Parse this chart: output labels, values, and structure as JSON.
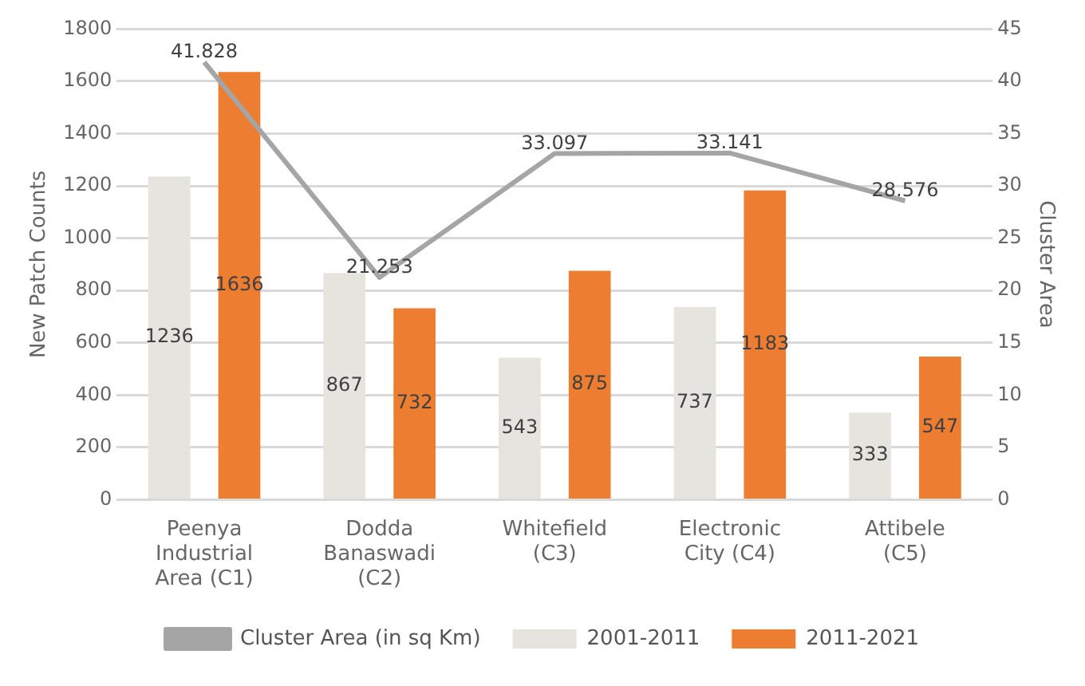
{
  "chart_data": {
    "type": "bar",
    "categories": [
      "Peenya Industrial Area (C1)",
      "Dodda Banaswadi (C2)",
      "Whitefield (C3)",
      "Electronic City (C4)",
      "Attibele (C5)"
    ],
    "series": [
      {
        "name": "2001-2011",
        "color": "#e6e4de",
        "values": [
          1236,
          867,
          543,
          737,
          333
        ]
      },
      {
        "name": "2011-2021",
        "color": "#ec7d31",
        "values": [
          1636,
          732,
          875,
          1183,
          547
        ]
      },
      {
        "name": "Cluster Area (in sq Km)",
        "type": "line",
        "axis": "y2",
        "color": "#a5a5a5",
        "values": [
          41.828,
          21.253,
          33.097,
          33.141,
          28.576
        ]
      }
    ],
    "ylabel": "New Patch Counts",
    "y2label": "Cluster Area",
    "ylim": [
      0,
      1800
    ],
    "yticks": [
      0,
      200,
      400,
      600,
      800,
      1000,
      1200,
      1400,
      1600,
      1800
    ],
    "y2lim": [
      0,
      45
    ],
    "y2ticks": [
      0,
      5,
      10,
      15,
      20,
      25,
      30,
      35,
      40,
      45
    ],
    "grid": "y",
    "legend": "bottom",
    "data_labels": true,
    "marker": "none"
  }
}
